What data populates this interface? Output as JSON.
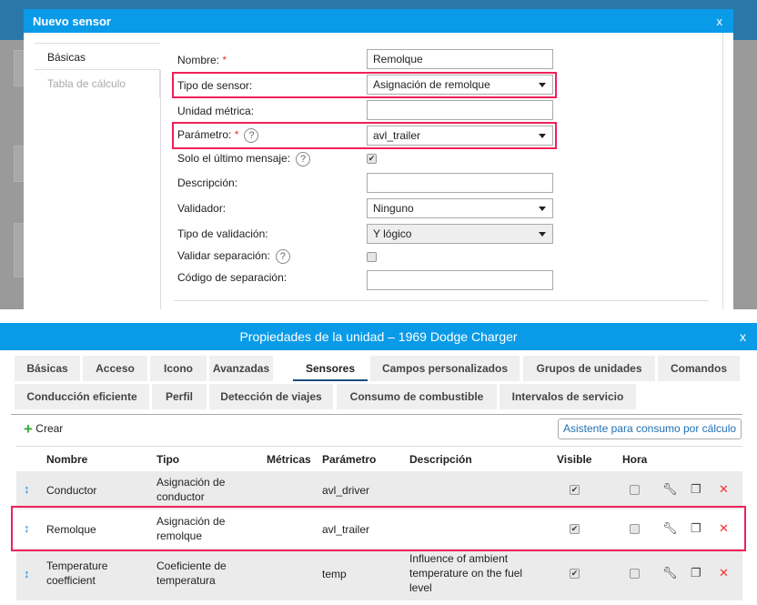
{
  "background_dialog": {
    "title": "Propiedades de la unidad – 1969 Dodge Charger"
  },
  "new_sensor": {
    "title": "Nuevo sensor",
    "close": "x",
    "tabs": [
      "Básicas",
      "Tabla de cálculo"
    ],
    "fields": {
      "name": {
        "label": "Nombre:",
        "required": "*",
        "value": "Remolque"
      },
      "sensor_type": {
        "label": "Tipo de sensor:",
        "value": "Asignación de remolque"
      },
      "unit": {
        "label": "Unidad métrica:",
        "value": ""
      },
      "parameter": {
        "label": "Parámetro:",
        "required": "*",
        "help": "?",
        "value": "avl_trailer"
      },
      "last_message": {
        "label": "Solo el último mensaje:",
        "help": "?",
        "checked": true
      },
      "description": {
        "label": "Descripción:",
        "value": ""
      },
      "validator": {
        "label": "Validador:",
        "value": "Ninguno"
      },
      "validation_type": {
        "label": "Tipo de validación:",
        "value": "Y lógico"
      },
      "validate_sep": {
        "label": "Validar separación:",
        "help": "?",
        "checked": false
      },
      "sep_code": {
        "label": "Código de separación:",
        "value": ""
      }
    }
  },
  "unit_props": {
    "title": "Propiedades de la unidad – 1969 Dodge Charger",
    "close": "x",
    "tabs": [
      "Básicas",
      "Acceso",
      "Icono",
      "Avanzadas",
      "Sensores",
      "Campos personalizados",
      "Grupos de unidades",
      "Comandos",
      "Conducción eficiente",
      "Perfil",
      "Detección de viajes",
      "Consumo de combustible",
      "Intervalos de servicio"
    ],
    "active_tab": "Sensores",
    "create": "Crear",
    "wizard": "Asistente para consumo por cálculo",
    "columns": [
      "Nombre",
      "Tipo",
      "Métricas",
      "Parámetro",
      "Descripción",
      "Visible",
      "Hora"
    ],
    "rows": [
      {
        "name": "Conductor",
        "type": "Asignación de conductor",
        "metrics": "",
        "param": "avl_driver",
        "desc": "",
        "visible": true,
        "time": false
      },
      {
        "name": "Remolque",
        "type": "Asignación de remolque",
        "metrics": "",
        "param": "avl_trailer",
        "desc": "",
        "visible": true,
        "time": false
      },
      {
        "name": "Temperature coefficient",
        "type": "Coeficiente de temperatura",
        "metrics": "",
        "param": "temp",
        "desc": "Influence of ambient temperature on the fuel level",
        "visible": true,
        "time": false
      }
    ]
  },
  "colors": {
    "header": "#0a9be8",
    "highlight": "#f0205a",
    "delete": "#f03030",
    "create": "#3aaa35"
  }
}
